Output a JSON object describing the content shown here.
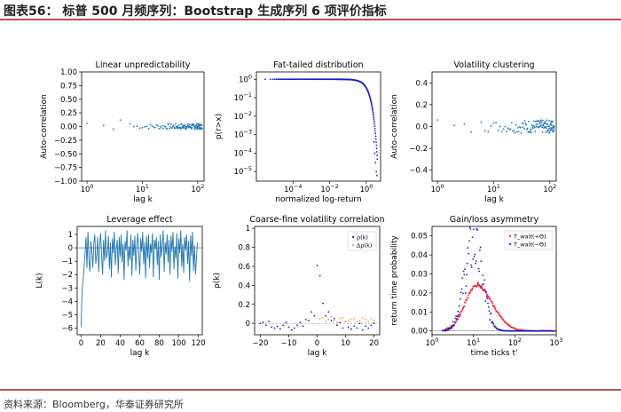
{
  "figure": {
    "title": "图表56： 标普 500 月频序列：Bootstrap 生成序列 6 项评价指标",
    "source": "资料来源：Bloomberg，华泰证券研究所"
  },
  "colors": {
    "rule": "#c0504d",
    "series_blue": "#1f77b4",
    "series_dark_blue": "#1a1ad0",
    "series_orange": "#ff9f2f",
    "series_red": "#ff2020"
  },
  "chart_data": [
    {
      "id": "p1",
      "type": "scatter",
      "title": "Linear unpredictability",
      "xlabel": "lag k",
      "ylabel": "Auto-correlation",
      "xscale": "log",
      "xlim": [
        0.8,
        130
      ],
      "ylim": [
        -1.0,
        1.0
      ],
      "xticks": [
        1,
        10,
        100
      ],
      "xtick_labels": [
        "10^0",
        "10^1",
        "10^2"
      ],
      "yticks": [
        -1.0,
        -0.75,
        -0.5,
        -0.25,
        0.0,
        0.25,
        0.5,
        0.75,
        1.0
      ],
      "ytick_labels": [
        "−1.00",
        "−0.75",
        "−0.50",
        "−0.25",
        "0.00",
        "0.25",
        "0.50",
        "0.75",
        "1.00"
      ],
      "series": [
        {
          "color": "#1f77b4",
          "x_range": [
            1,
            120
          ],
          "y_center": 0.0,
          "y_spread": 0.05,
          "points": [
            [
              1,
              0.06
            ],
            [
              3,
              -0.05
            ],
            [
              4,
              0.12
            ],
            [
              2,
              0.02
            ],
            [
              6,
              0.05
            ]
          ]
        }
      ]
    },
    {
      "id": "p2",
      "type": "scatter",
      "title": "Fat-tailed distribution",
      "xlabel": "normalized log-return",
      "ylabel": "p(r>x)",
      "xscale": "log",
      "yscale": "log",
      "xlim": [
        1e-06,
        6
      ],
      "ylim": [
        3e-06,
        2.5
      ],
      "xticks": [
        0.0001,
        0.01,
        1
      ],
      "xtick_labels": [
        "10^-4",
        "10^-2",
        "10^0"
      ],
      "yticks": [
        1,
        0.1,
        0.01,
        0.001,
        0.0001,
        1e-05
      ],
      "ytick_labels": [
        "10^0",
        "10^-1",
        "10^-2",
        "10^-3",
        "10^-4",
        "10^-5"
      ],
      "series": [
        {
          "color": "#1a1ad0",
          "description": "survival curve",
          "x_start": 3e-06,
          "x_end": 4.0
        }
      ]
    },
    {
      "id": "p3",
      "type": "scatter",
      "title": "Volatility clustering",
      "xlabel": "lag k",
      "ylabel": "Auto-correlation",
      "xscale": "log",
      "xlim": [
        0.8,
        130
      ],
      "ylim": [
        -0.5,
        0.5
      ],
      "xticks": [
        1,
        10,
        100
      ],
      "xtick_labels": [
        "10^0",
        "10^1",
        "10^2"
      ],
      "yticks": [
        -0.4,
        -0.2,
        0.0,
        0.2,
        0.4
      ],
      "ytick_labels": [
        "−0.4",
        "−0.2",
        "0.0",
        "0.2",
        "0.4"
      ],
      "series": [
        {
          "color": "#1f77b4",
          "x_range": [
            1,
            120
          ],
          "y_center": 0.0,
          "y_spread": 0.06,
          "points": [
            [
              1,
              0.06
            ],
            [
              2,
              0.01
            ],
            [
              3,
              0.02
            ],
            [
              4,
              -0.05
            ],
            [
              6,
              0.04
            ]
          ]
        }
      ]
    },
    {
      "id": "p4",
      "type": "line",
      "title": "Leverage effect",
      "xlabel": "lag k",
      "ylabel": "L(k)",
      "xlim": [
        -4,
        124
      ],
      "ylim": [
        -6.5,
        1.6
      ],
      "xticks": [
        0,
        20,
        40,
        60,
        80,
        100,
        120
      ],
      "yticks": [
        -6,
        -5,
        -4,
        -3,
        -2,
        -1,
        0,
        1
      ],
      "ytick_labels": [
        "−6",
        "−5",
        "−4",
        "−3",
        "−2",
        "−1",
        "0",
        "1"
      ],
      "series": [
        {
          "color": "#1f77b4",
          "x_start": 0,
          "values": [
            -5.9,
            -3.2,
            -2.5,
            -1.5,
            -0.5,
            0.8,
            -1.5,
            1.2,
            -0.8,
            -1.8,
            0.5,
            -0.2,
            -1.5,
            0.3,
            1.0,
            -1.2,
            -0.5,
            0.8,
            -1.8,
            0.2,
            1.1,
            -0.6,
            -2.0,
            0.6,
            -1.0,
            1.3,
            -0.8,
            -0.3,
            0.9,
            -1.6,
            0.4,
            -2.2,
            0.7,
            -0.4,
            1.2,
            -1.3,
            -0.1,
            0.6,
            -1.9,
            0.8,
            -0.7,
            1.0,
            -1.1,
            0.3,
            -2.4,
            0.5,
            -0.2,
            1.3,
            -1.4,
            0.1,
            -0.9,
            1.0,
            -2.1,
            0.6,
            -0.6,
            0.9,
            -1.7,
            0.2,
            1.1,
            -0.5,
            -2.0,
            0.7,
            -0.3,
            1.2,
            -1.2,
            0.4,
            -2.3,
            0.9,
            -0.8,
            1.0,
            -1.5,
            0.3,
            -0.4,
            1.1,
            -2.2,
            0.6,
            -0.1,
            0.8,
            -1.3,
            0.5,
            -2.4,
            1.0,
            -0.7,
            0.2,
            1.3,
            -1.8,
            0.4,
            -0.5,
            1.0,
            -1.1,
            0.6,
            -2.0,
            0.9,
            -0.3,
            1.2,
            -1.6,
            0.1,
            -0.8,
            1.1,
            -2.3,
            0.7,
            -0.4,
            1.3,
            -1.4,
            0.3,
            -1.9,
            0.8,
            -0.2,
            1.0,
            -1.2,
            0.5,
            -2.5,
            0.9,
            -0.6,
            1.2,
            -1.7,
            0.2,
            -2.0,
            -0.9,
            0.4
          ]
        }
      ]
    },
    {
      "id": "p5",
      "type": "scatter",
      "title": "Coarse-fine volatility correlation",
      "xlabel": "lag k",
      "ylabel": "ρ(k)",
      "xlim": [
        -22,
        22
      ],
      "ylim": [
        -0.12,
        1.02
      ],
      "xticks": [
        -20,
        -10,
        0,
        10,
        20
      ],
      "xtick_labels": [
        "−20",
        "−10",
        "0",
        "10",
        "20"
      ],
      "yticks": [
        0.0,
        0.2,
        0.4,
        0.6,
        0.8,
        1.0
      ],
      "legend": "top-right",
      "series": [
        {
          "name": "ρ(k)",
          "color": "#1a1ad0",
          "x": [
            -20,
            -19,
            -18,
            -17,
            -16,
            -15,
            -14,
            -13,
            -12,
            -11,
            -10,
            -9,
            -8,
            -7,
            -6,
            -5,
            -4,
            -3,
            -2,
            -1,
            0,
            1,
            2,
            3,
            4,
            5,
            6,
            7,
            8,
            9,
            10,
            11,
            12,
            13,
            14,
            15,
            16,
            17,
            18,
            19,
            20
          ],
          "values": [
            0.0,
            0.01,
            -0.02,
            0.02,
            -0.04,
            -0.05,
            -0.03,
            -0.06,
            -0.02,
            0.01,
            -0.04,
            -0.07,
            -0.05,
            -0.02,
            0.01,
            -0.03,
            0.04,
            0.03,
            0.12,
            0.08,
            0.61,
            0.5,
            0.21,
            0.08,
            0.12,
            0.03,
            0.05,
            -0.02,
            0.01,
            -0.05,
            0.02,
            -0.04,
            -0.06,
            -0.03,
            -0.05,
            0.0,
            -0.07,
            -0.03,
            -0.05,
            -0.02,
            0.0
          ]
        },
        {
          "name": "Δρ(k)",
          "color": "#ff9f2f",
          "x": [
            1,
            2,
            3,
            4,
            5,
            6,
            7,
            8,
            9,
            10,
            11,
            12,
            13,
            14,
            15,
            16,
            17,
            18,
            19,
            20
          ],
          "values": [
            0.05,
            0.06,
            0.02,
            0.04,
            0.07,
            0.03,
            0.01,
            0.05,
            0.06,
            0.02,
            0.03,
            0.04,
            0.05,
            0.02,
            0.03,
            0.06,
            0.04,
            0.02,
            0.05,
            0.03
          ]
        }
      ]
    },
    {
      "id": "p6",
      "type": "scatter",
      "title": "Gain/loss asymmetry",
      "xlabel": "time ticks t'",
      "ylabel": "return time probability",
      "xscale": "log",
      "xlim": [
        1,
        1000
      ],
      "ylim": [
        -0.002,
        0.055
      ],
      "xticks": [
        1,
        10,
        100,
        1000
      ],
      "xtick_labels": [
        "10^0",
        "10^1",
        "10^2",
        "10^3"
      ],
      "yticks": [
        0.0,
        0.01,
        0.02,
        0.03,
        0.04,
        0.05
      ],
      "ytick_labels": [
        "0.00",
        "0.01",
        "0.02",
        "0.03",
        "0.04",
        "0.05"
      ],
      "legend": "top-right",
      "series": [
        {
          "name": "T_wait(+Θ)",
          "color": "#ff2020",
          "peak_x": 12,
          "peak_y": 0.024
        },
        {
          "name": "T_wait(−Θ)",
          "color": "#1a1ad0",
          "peak_x": 10,
          "peak_y": 0.052
        }
      ]
    }
  ]
}
